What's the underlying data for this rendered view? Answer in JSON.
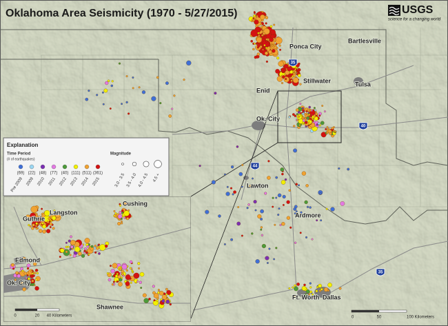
{
  "header": {
    "title": "Oklahoma Area Seismicity (1970 - 5/27/2015)",
    "logo": "USGS",
    "tagline": "science for a changing world"
  },
  "map": {
    "cities": [
      "Ponca City",
      "Bartlesville",
      "Enid",
      "Stillwater",
      "Tulsa",
      "Ok. City",
      "Lawton",
      "Ardmore",
      "Ft. Worth",
      "Dallas"
    ],
    "highways": [
      "35",
      "40",
      "44",
      "35"
    ],
    "scale": [
      "0",
      "50",
      "100 Kilometers"
    ]
  },
  "legend": {
    "title": "Explanation",
    "period_heading": "Time Period",
    "period_subheading": "(# of earthquakes)",
    "periods": [
      {
        "label": "Pre 2009",
        "count": "(69)",
        "color": "#3f6fd6"
      },
      {
        "label": "2009",
        "count": "(22)",
        "color": "#9ad6f2"
      },
      {
        "label": "2010",
        "count": "(48)",
        "color": "#7b2fb2"
      },
      {
        "label": "2011",
        "count": "(77)",
        "color": "#e27ae2"
      },
      {
        "label": "2012",
        "count": "(40)",
        "color": "#4c9a3a"
      },
      {
        "label": "2013",
        "count": "(111)",
        "color": "#f2f000"
      },
      {
        "label": "2014",
        "count": "(511)",
        "color": "#f0a232"
      },
      {
        "label": "2015",
        "count": "(361)",
        "color": "#d41212"
      }
    ],
    "magnitude_heading": "Magnitude",
    "magnitudes": [
      "3.0 - 3.5",
      "3.5 - 4.0",
      "4.0 - 4.5",
      "4.5 +"
    ]
  },
  "inset": {
    "cities": [
      "Cushing",
      "Guthrie",
      "Langston",
      "Edmond",
      "Ok. City",
      "Shawnee"
    ],
    "scale": [
      "0",
      "20",
      "40 Kilometers"
    ]
  }
}
